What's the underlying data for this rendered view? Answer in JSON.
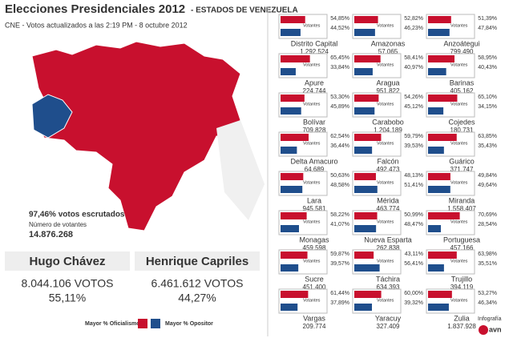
{
  "header": {
    "title": "Elecciones Presidenciales 2012",
    "subtitle": "- ESTADOS DE VENEZUELA",
    "source": "CNE - Votos actualizados a las 2:19 PM - 8 octubre 2012"
  },
  "summary": {
    "counted": "97,46% votos escrutados",
    "voters_label": "Número de votantes",
    "voters": "14.876.268"
  },
  "candidates": [
    {
      "name": "Hugo Chávez",
      "votes": "8.044.106 VOTOS",
      "share": "55,11%",
      "color": "#c8102e"
    },
    {
      "name": "Henrique Capriles",
      "votes": "6.461.612 VOTOS",
      "share": "44,27%",
      "color": "#1f4e8c"
    }
  ],
  "legend": [
    "Mayor % Oficialismo",
    "Mayor % Opositor"
  ],
  "footer": {
    "credit": "Infografía",
    "logo": "avn"
  },
  "votantes_label": "Votantes",
  "states": [
    {
      "name": "Distrito Capital",
      "voters": "1.292.524",
      "values": [
        54.85,
        44.52
      ],
      "value_labels": [
        "54,85%",
        "44,52%"
      ]
    },
    {
      "name": "Amazonas",
      "voters": "57.065",
      "values": [
        52.82,
        46.23
      ],
      "value_labels": [
        "52,82%",
        "46,23%"
      ]
    },
    {
      "name": "Anzoátegui",
      "voters": "799.490",
      "values": [
        51.39,
        47.84
      ],
      "value_labels": [
        "51,39%",
        "47,84%"
      ]
    },
    {
      "name": "Apure",
      "voters": "224.744",
      "values": [
        65.45,
        33.84
      ],
      "value_labels": [
        "65,45%",
        "33,84%"
      ]
    },
    {
      "name": "Aragua",
      "voters": "951.822",
      "values": [
        58.41,
        40.97
      ],
      "value_labels": [
        "58,41%",
        "40,97%"
      ]
    },
    {
      "name": "Barinas",
      "voters": "405.162",
      "values": [
        58.95,
        40.43
      ],
      "value_labels": [
        "58,95%",
        "40,43%"
      ]
    },
    {
      "name": "Bolívar",
      "voters": "709.828",
      "values": [
        53.3,
        45.89
      ],
      "value_labels": [
        "53,30%",
        "45,89%"
      ]
    },
    {
      "name": "Carabobo",
      "voters": "1.204.189",
      "values": [
        54.26,
        45.12
      ],
      "value_labels": [
        "54,26%",
        "45,12%"
      ]
    },
    {
      "name": "Cojedes",
      "voters": "180.731",
      "values": [
        65.1,
        34.15
      ],
      "value_labels": [
        "65,10%",
        "34,15%"
      ]
    },
    {
      "name": "Delta Amacuro",
      "voters": "64.689",
      "values": [
        62.54,
        36.44
      ],
      "value_labels": [
        "62,54%",
        "36,44%"
      ]
    },
    {
      "name": "Falcón",
      "voters": "492.473",
      "values": [
        59.79,
        39.53
      ],
      "value_labels": [
        "59,79%",
        "39,53%"
      ]
    },
    {
      "name": "Guárico",
      "voters": "371.747",
      "values": [
        63.85,
        35.43
      ],
      "value_labels": [
        "63,85%",
        "35,43%"
      ]
    },
    {
      "name": "Lara",
      "voters": "945.581",
      "values": [
        50.63,
        48.58
      ],
      "value_labels": [
        "50,63%",
        "48,58%"
      ]
    },
    {
      "name": "Mérida",
      "voters": "463.774",
      "values": [
        48.13,
        51.41
      ],
      "value_labels": [
        "48,13%",
        "51,41%"
      ]
    },
    {
      "name": "Miranda",
      "voters": "1.558.407",
      "values": [
        49.84,
        49.64
      ],
      "value_labels": [
        "49,84%",
        "49,64%"
      ]
    },
    {
      "name": "Monagas",
      "voters": "459.598",
      "values": [
        58.22,
        41.07
      ],
      "value_labels": [
        "58,22%",
        "41,07%"
      ]
    },
    {
      "name": "Nueva Esparta",
      "voters": "262.838",
      "values": [
        50.99,
        48.47
      ],
      "value_labels": [
        "50,99%",
        "48,47%"
      ]
    },
    {
      "name": "Portuguesa",
      "voters": "457.166",
      "values": [
        70.69,
        28.54
      ],
      "value_labels": [
        "70,69%",
        "28,54%"
      ]
    },
    {
      "name": "Sucre",
      "voters": "451.400",
      "values": [
        59.87,
        39.57
      ],
      "value_labels": [
        "59,87%",
        "39,57%"
      ]
    },
    {
      "name": "Táchira",
      "voters": "634.393",
      "values": [
        43.11,
        56.41
      ],
      "value_labels": [
        "43,11%",
        "56,41%"
      ]
    },
    {
      "name": "Trujillo",
      "voters": "394.119",
      "values": [
        63.98,
        35.51
      ],
      "value_labels": [
        "63,98%",
        "35,51%"
      ]
    },
    {
      "name": "Vargas",
      "voters": "209.774",
      "values": [
        61.44,
        37.89
      ],
      "value_labels": [
        "61,44%",
        "37,89%"
      ]
    },
    {
      "name": "Yaracuy",
      "voters": "327.409",
      "values": [
        60.0,
        39.32
      ],
      "value_labels": [
        "60,00%",
        "39,32%"
      ]
    },
    {
      "name": "Zulia",
      "voters": "1.837.928",
      "values": [
        53.27,
        46.34
      ],
      "value_labels": [
        "53,27%",
        "46,34%"
      ]
    }
  ]
}
